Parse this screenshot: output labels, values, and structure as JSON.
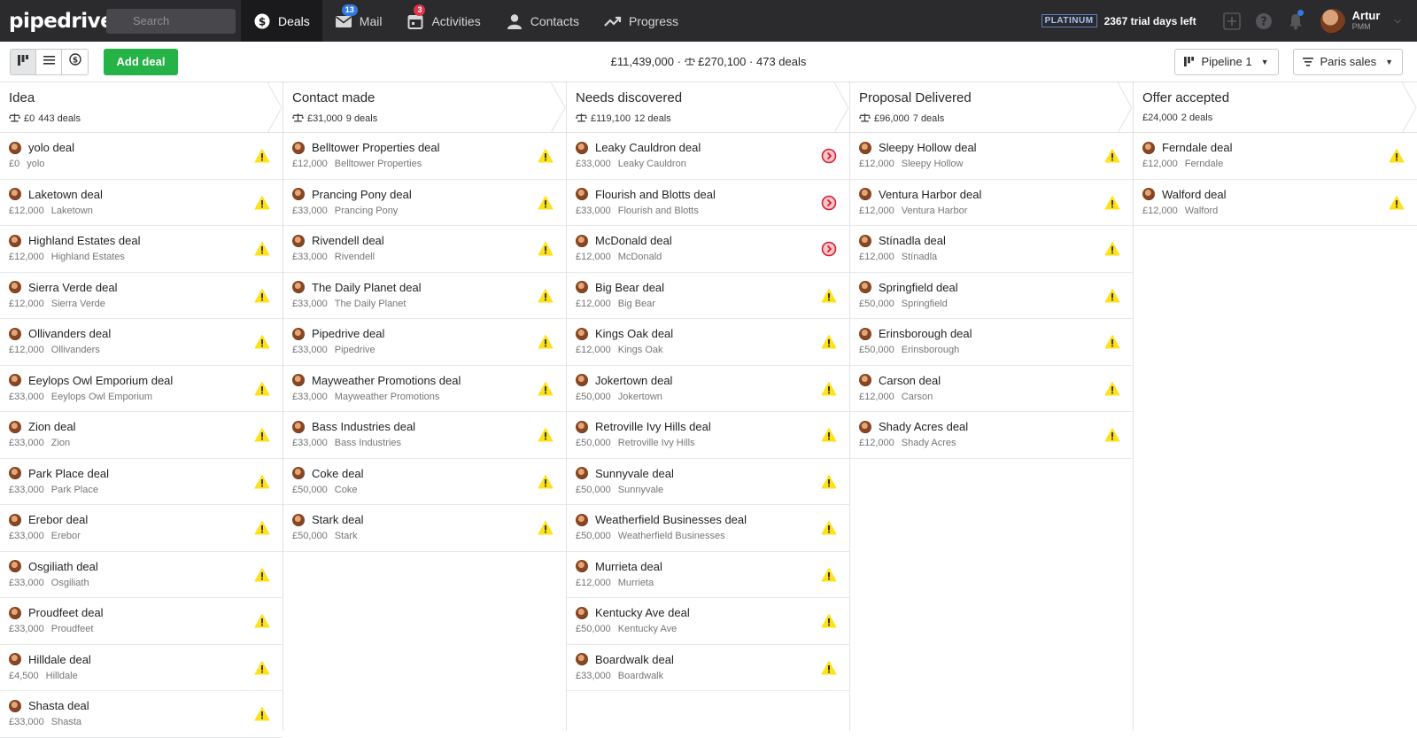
{
  "app": {
    "logo": "pipedrive"
  },
  "search": {
    "placeholder": "Search"
  },
  "nav": [
    {
      "label": "Deals",
      "icon": "dollar-icon",
      "active": true
    },
    {
      "label": "Mail",
      "icon": "mail-icon",
      "badge": "13"
    },
    {
      "label": "Activities",
      "icon": "calendar-icon",
      "badge": "3"
    },
    {
      "label": "Contacts",
      "icon": "person-icon"
    },
    {
      "label": "Progress",
      "icon": "trend-icon"
    }
  ],
  "account": {
    "plan": "PLATINUM",
    "trial": "2367 trial days left",
    "user_name": "Artur",
    "user_company": "PMM"
  },
  "toolbar": {
    "add_deal": "Add deal",
    "summary_total": "£11,439,000",
    "summary_weighted": "£270,100",
    "summary_count": "473 deals",
    "pipeline": "Pipeline 1",
    "filter": "Paris sales"
  },
  "columns": [
    {
      "title": "Idea",
      "value": "£0",
      "count": "443 deals",
      "balance_icon": true,
      "deals": [
        {
          "title": "yolo deal",
          "value": "£0",
          "org": "yolo",
          "status": "warning"
        },
        {
          "title": "Laketown deal",
          "value": "£12,000",
          "org": "Laketown",
          "status": "warning"
        },
        {
          "title": "Highland Estates deal",
          "value": "£12,000",
          "org": "Highland Estates",
          "status": "warning"
        },
        {
          "title": "Sierra Verde deal",
          "value": "£12,000",
          "org": "Sierra Verde",
          "status": "warning"
        },
        {
          "title": "Ollivanders deal",
          "value": "£12,000",
          "org": "Ollivanders",
          "status": "warning"
        },
        {
          "title": "Eeylops Owl Emporium deal",
          "value": "£33,000",
          "org": "Eeylops Owl Emporium",
          "status": "warning"
        },
        {
          "title": "Zion deal",
          "value": "£33,000",
          "org": "Zion",
          "status": "warning"
        },
        {
          "title": "Park Place deal",
          "value": "£33,000",
          "org": "Park Place",
          "status": "warning"
        },
        {
          "title": "Erebor deal",
          "value": "£33,000",
          "org": "Erebor",
          "status": "warning"
        },
        {
          "title": "Osgiliath deal",
          "value": "£33,000",
          "org": "Osgiliath",
          "status": "warning"
        },
        {
          "title": "Proudfeet deal",
          "value": "£33,000",
          "org": "Proudfeet",
          "status": "warning"
        },
        {
          "title": "Hilldale deal",
          "value": "£4,500",
          "org": "Hilldale",
          "status": "warning"
        },
        {
          "title": "Shasta deal",
          "value": "£33,000",
          "org": "Shasta",
          "status": "warning"
        }
      ]
    },
    {
      "title": "Contact made",
      "value": "£31,000",
      "count": "9 deals",
      "balance_icon": true,
      "deals": [
        {
          "title": "Belltower Properties deal",
          "value": "£12,000",
          "org": "Belltower Properties",
          "status": "warning"
        },
        {
          "title": "Prancing Pony deal",
          "value": "£33,000",
          "org": "Prancing Pony",
          "status": "warning"
        },
        {
          "title": "Rivendell deal",
          "value": "£33,000",
          "org": "Rivendell",
          "status": "warning"
        },
        {
          "title": "The Daily Planet deal",
          "value": "£33,000",
          "org": "The Daily Planet",
          "status": "warning"
        },
        {
          "title": "Pipedrive deal",
          "value": "£33,000",
          "org": "Pipedrive",
          "status": "warning"
        },
        {
          "title": "Mayweather Promotions deal",
          "value": "£33,000",
          "org": "Mayweather Promotions",
          "status": "warning"
        },
        {
          "title": "Bass Industries deal",
          "value": "£33,000",
          "org": "Bass Industries",
          "status": "warning"
        },
        {
          "title": "Coke deal",
          "value": "£50,000",
          "org": "Coke",
          "status": "warning"
        },
        {
          "title": "Stark deal",
          "value": "£50,000",
          "org": "Stark",
          "status": "warning"
        }
      ]
    },
    {
      "title": "Needs discovered",
      "value": "£119,100",
      "count": "12 deals",
      "balance_icon": true,
      "deals": [
        {
          "title": "Leaky Cauldron deal",
          "value": "£33,000",
          "org": "Leaky Cauldron",
          "status": "overdue"
        },
        {
          "title": "Flourish and Blotts deal",
          "value": "£33,000",
          "org": "Flourish and Blotts",
          "status": "overdue"
        },
        {
          "title": "McDonald deal",
          "value": "£12,000",
          "org": "McDonald",
          "status": "overdue"
        },
        {
          "title": "Big Bear deal",
          "value": "£12,000",
          "org": "Big Bear",
          "status": "warning"
        },
        {
          "title": "Kings Oak deal",
          "value": "£12,000",
          "org": "Kings Oak",
          "status": "warning"
        },
        {
          "title": "Jokertown deal",
          "value": "£50,000",
          "org": "Jokertown",
          "status": "warning"
        },
        {
          "title": "Retroville Ivy Hills deal",
          "value": "£50,000",
          "org": "Retroville Ivy Hills",
          "status": "warning"
        },
        {
          "title": "Sunnyvale deal",
          "value": "£50,000",
          "org": "Sunnyvale",
          "status": "warning"
        },
        {
          "title": "Weatherfield Businesses deal",
          "value": "£50,000",
          "org": "Weatherfield Businesses",
          "status": "warning"
        },
        {
          "title": "Murrieta deal",
          "value": "£12,000",
          "org": "Murrieta",
          "status": "warning"
        },
        {
          "title": "Kentucky Ave deal",
          "value": "£50,000",
          "org": "Kentucky Ave",
          "status": "warning"
        },
        {
          "title": "Boardwalk deal",
          "value": "£33,000",
          "org": "Boardwalk",
          "status": "warning"
        }
      ]
    },
    {
      "title": "Proposal Delivered",
      "value": "£96,000",
      "count": "7 deals",
      "balance_icon": true,
      "deals": [
        {
          "title": "Sleepy Hollow deal",
          "value": "£12,000",
          "org": "Sleepy Hollow",
          "status": "warning"
        },
        {
          "title": "Ventura Harbor deal",
          "value": "£12,000",
          "org": "Ventura Harbor",
          "status": "warning"
        },
        {
          "title": "Stínadla deal",
          "value": "£12,000",
          "org": "Stínadla",
          "status": "warning"
        },
        {
          "title": "Springfield deal",
          "value": "£50,000",
          "org": "Springfield",
          "status": "warning"
        },
        {
          "title": "Erinsborough deal",
          "value": "£50,000",
          "org": "Erinsborough",
          "status": "warning"
        },
        {
          "title": "Carson deal",
          "value": "£12,000",
          "org": "Carson",
          "status": "warning"
        },
        {
          "title": "Shady Acres deal",
          "value": "£12,000",
          "org": "Shady Acres",
          "status": "warning"
        }
      ]
    },
    {
      "title": "Offer accepted",
      "value": "£24,000",
      "count": "2 deals",
      "balance_icon": false,
      "deals": [
        {
          "title": "Ferndale deal",
          "value": "£12,000",
          "org": "Ferndale",
          "status": "warning"
        },
        {
          "title": "Walford deal",
          "value": "£12,000",
          "org": "Walford",
          "status": "warning"
        }
      ]
    }
  ]
}
